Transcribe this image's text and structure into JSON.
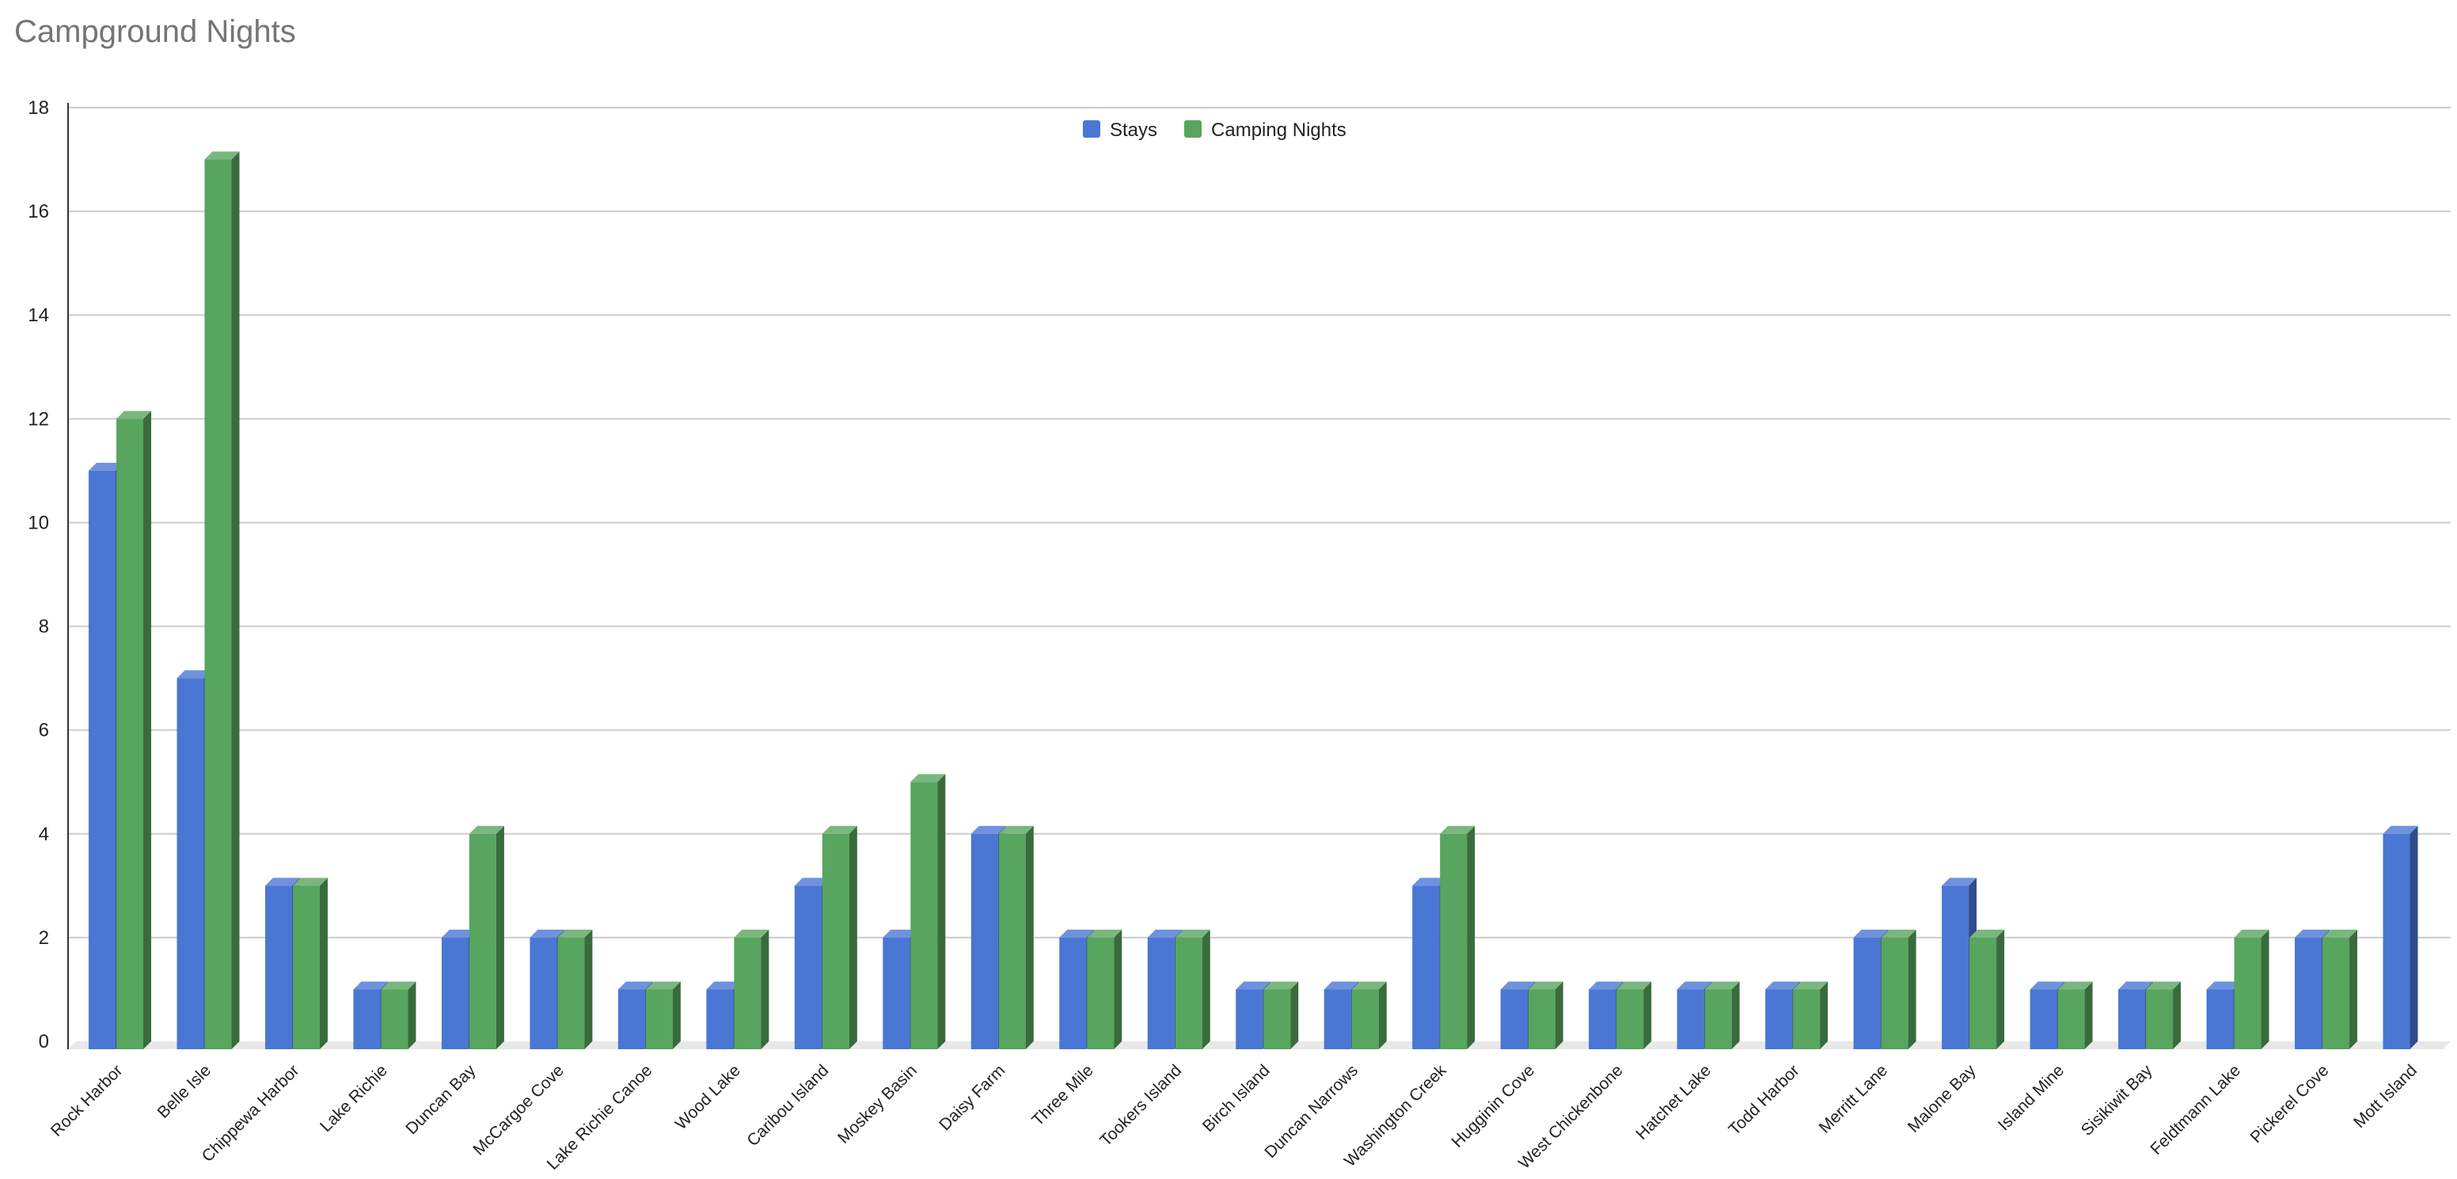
{
  "chart_data": {
    "type": "bar",
    "title": "Campground Nights",
    "xlabel": "",
    "ylabel": "",
    "ylim": [
      0,
      18
    ],
    "yticks": [
      "0",
      "2",
      "4",
      "6",
      "8",
      "10",
      "12",
      "14",
      "16",
      "18"
    ],
    "grid": true,
    "legend_position": "top",
    "style": "3d",
    "categories": [
      "Rock Harbor",
      "Belle Isle",
      "Chippewa Harbor",
      "Lake Richie",
      "Duncan Bay",
      "McCargoe Cove",
      "Lake Richie Canoe",
      "Wood Lake",
      "Caribou Island",
      "Moskey Basin",
      "Daisy Farm",
      "Three Mile",
      "Tookers Island",
      "Birch Island",
      "Duncan Narrows",
      "Washington Creek",
      "Hugginin Cove",
      "West Chickenbone",
      "Hatchet Lake",
      "Todd Harbor",
      "Merritt Lane",
      "Malone Bay",
      "Island Mine",
      "Sisikiwit Bay",
      "Feldtmann Lake",
      "Pickerel Cove",
      "Mott Island"
    ],
    "series": [
      {
        "name": "Stays",
        "color": "#4a77d4",
        "values": [
          11,
          7,
          3,
          1,
          2,
          2,
          1,
          1,
          3,
          2,
          4,
          2,
          2,
          1,
          1,
          3,
          1,
          1,
          1,
          1,
          2,
          3,
          1,
          1,
          1,
          2,
          4
        ]
      },
      {
        "name": "Camping Nights",
        "color": "#57a55e",
        "values": [
          12,
          17,
          3,
          1,
          4,
          2,
          1,
          2,
          4,
          5,
          4,
          2,
          2,
          1,
          1,
          4,
          1,
          1,
          1,
          1,
          2,
          2,
          1,
          1,
          2,
          2,
          null
        ]
      }
    ]
  }
}
